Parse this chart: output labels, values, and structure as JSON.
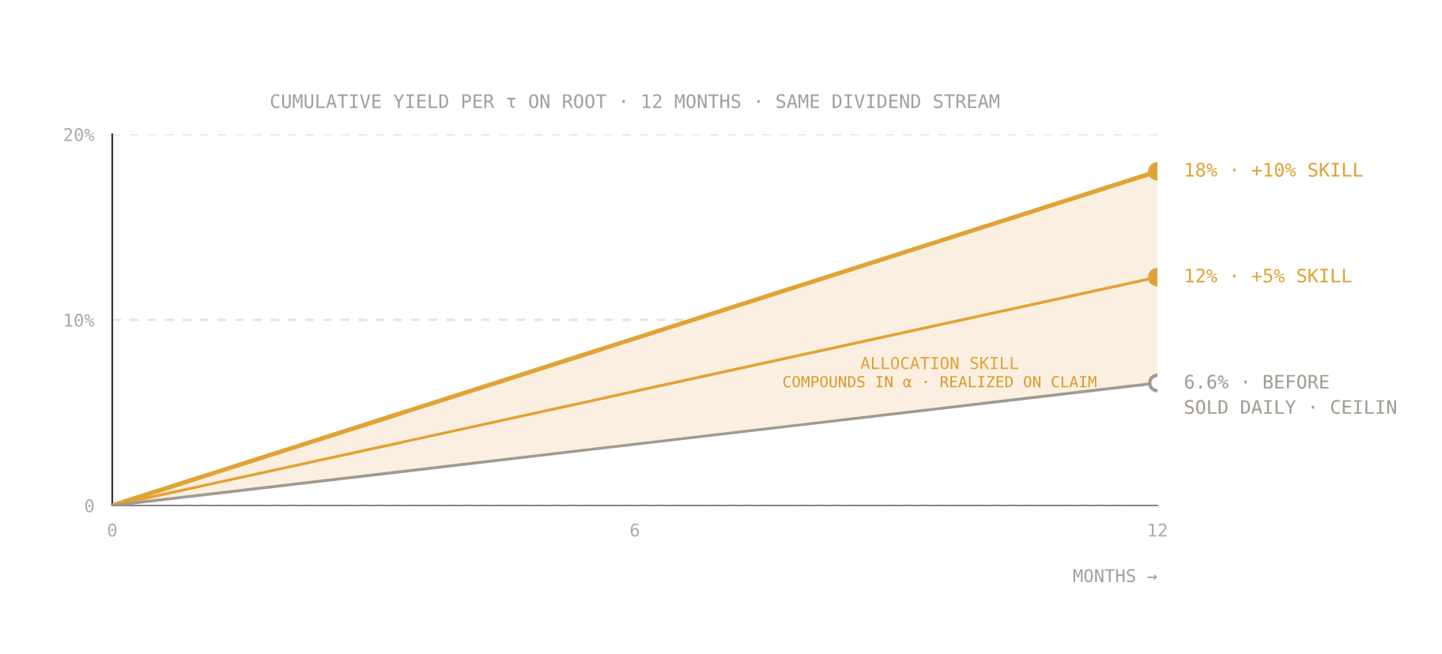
{
  "chart_data": {
    "type": "line",
    "title": "CUMULATIVE YIELD PER τ ON ROOT · 12 MONTHS · SAME DIVIDEND STREAM",
    "xlabel": "MONTHS →",
    "x": [
      0,
      12
    ],
    "series": [
      {
        "name": "18% · +10% SKILL",
        "color": "#e0a335",
        "values": [
          0,
          18
        ]
      },
      {
        "name": "12% · +5% SKILL",
        "color": "#e0a335",
        "values": [
          0,
          12.3
        ],
        "lower": [
          0,
          6.6
        ],
        "upper": [
          0,
          18
        ]
      },
      {
        "name": "6.6% · BEFORE\nSOLD DAILY · CEILIN",
        "color": "#a09a92",
        "values": [
          0,
          6.6
        ]
      }
    ],
    "annotations": [
      "ALLOCATION SKILL",
      "COMPOUNDS IN α · REALIZED ON CLAIM"
    ],
    "xlim": [
      0,
      12
    ],
    "xticks": [
      0,
      6,
      12
    ],
    "ylim": [
      0,
      20
    ],
    "yticks": [
      0,
      {
        "value": 10,
        "label": "10%"
      },
      {
        "value": 20,
        "label": "20%"
      }
    ],
    "grid": "y",
    "marker": "circle",
    "legend": false
  }
}
